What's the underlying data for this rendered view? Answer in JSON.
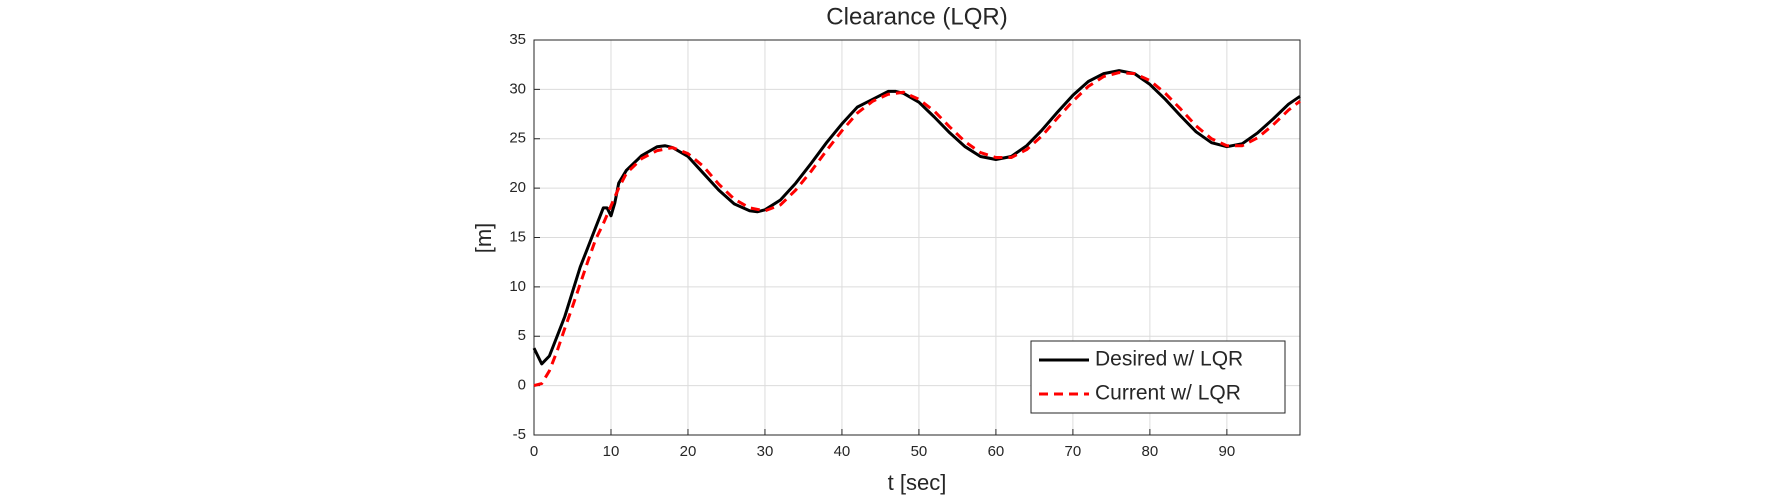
{
  "chart_data": {
    "type": "line",
    "title": "Clearance (LQR)",
    "x_label": "t [sec]",
    "y_label": "[m]",
    "xlim": [
      0,
      99.5
    ],
    "ylim": [
      -5,
      35
    ],
    "xticks": [
      0,
      10,
      20,
      30,
      40,
      50,
      60,
      70,
      80,
      90
    ],
    "yticks": [
      -5,
      0,
      5,
      10,
      15,
      20,
      25,
      30,
      35
    ],
    "grid": true,
    "legend": "lower right",
    "series": [
      {
        "name": "Desired w/ LQR",
        "color": "#000000",
        "dashed": false,
        "x": [
          0,
          1,
          2,
          3,
          4,
          5,
          6,
          7,
          8,
          9,
          9.5,
          10,
          10.5,
          11,
          12,
          14,
          16,
          17,
          18,
          20,
          22,
          24,
          26,
          28,
          29,
          30,
          32,
          34,
          36,
          38,
          40,
          42,
          43,
          44,
          46,
          47,
          48,
          50,
          52,
          54,
          56,
          58,
          60,
          62,
          64,
          66,
          68,
          70,
          72,
          74,
          76,
          78,
          80,
          82,
          84,
          86,
          88,
          90,
          92,
          94,
          96,
          98,
          99.5
        ],
        "values": [
          3.8,
          2.2,
          3,
          5,
          7,
          9.5,
          12,
          14,
          16,
          18,
          18,
          17.2,
          18.5,
          20.5,
          21.8,
          23.3,
          24.2,
          24.3,
          24.1,
          23.2,
          21.5,
          19.8,
          18.4,
          17.7,
          17.6,
          17.8,
          18.8,
          20.5,
          22.5,
          24.6,
          26.5,
          28.2,
          28.6,
          29.0,
          29.8,
          29.8,
          29.6,
          28.7,
          27.2,
          25.6,
          24.2,
          23.2,
          22.9,
          23.2,
          24.3,
          25.9,
          27.7,
          29.4,
          30.8,
          31.6,
          31.9,
          31.6,
          30.5,
          29.0,
          27.3,
          25.7,
          24.6,
          24.2,
          24.5,
          25.6,
          27.0,
          28.5,
          29.3
        ]
      },
      {
        "name": "Current w/ LQR",
        "color": "#ff0000",
        "dashed": true,
        "x": [
          0,
          1,
          2,
          3,
          4,
          5,
          6,
          7,
          8,
          9,
          10,
          11,
          12,
          14,
          16,
          18,
          20,
          22,
          24,
          26,
          28,
          30,
          32,
          34,
          36,
          38,
          40,
          42,
          44,
          46,
          48,
          50,
          52,
          54,
          56,
          58,
          60,
          62,
          64,
          66,
          68,
          70,
          72,
          74,
          76,
          78,
          80,
          82,
          84,
          86,
          88,
          90,
          92,
          94,
          96,
          98,
          99.5
        ],
        "values": [
          0,
          0.2,
          1.5,
          3.5,
          5.8,
          8,
          10.3,
          12.6,
          14.8,
          16.4,
          18.2,
          20,
          21.5,
          23,
          23.8,
          24.1,
          23.5,
          22.2,
          20.4,
          18.9,
          18,
          17.7,
          18.3,
          19.8,
          21.7,
          23.8,
          25.8,
          27.6,
          28.8,
          29.5,
          29.7,
          29.0,
          27.8,
          26.2,
          24.7,
          23.6,
          23.1,
          23.1,
          23.9,
          25.3,
          27.1,
          28.8,
          30.3,
          31.3,
          31.7,
          31.6,
          30.9,
          29.6,
          28.0,
          26.3,
          25.0,
          24.3,
          24.3,
          25.1,
          26.4,
          27.9,
          28.8
        ]
      }
    ]
  }
}
